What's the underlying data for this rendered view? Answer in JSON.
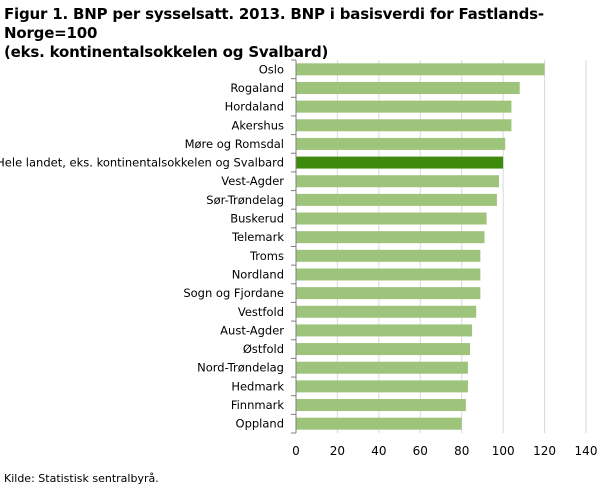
{
  "title_line1": "Figur 1. BNP per sysselsatt. 2013. BNP i basisverdi for Fastlands-Norge=100",
  "title_line2": "(eks. kontinentalsokkelen og Svalbard)",
  "source": "Kilde: Statistisk sentralbyrå.",
  "colors": {
    "bar": "#9dc47a",
    "highlight": "#3e8a0d",
    "grid": "#d9d9d9",
    "axis": "#7f7f7f"
  },
  "chart_data": {
    "type": "bar",
    "orientation": "horizontal",
    "categories": [
      "Oslo",
      "Rogaland",
      "Hordaland",
      "Akershus",
      "Møre og Romsdal",
      "Hele landet, eks. kontinentalsokkelen og Svalbard",
      "Vest-Agder",
      "Sør-Trøndelag",
      "Buskerud",
      "Telemark",
      "Troms",
      "Nordland",
      "Sogn og Fjordane",
      "Vestfold",
      "Aust-Agder",
      "Østfold",
      "Nord-Trøndelag",
      "Hedmark",
      "Finnmark",
      "Oppland"
    ],
    "values": [
      120,
      108,
      104,
      104,
      101,
      100,
      98,
      97,
      92,
      91,
      89,
      89,
      89,
      87,
      85,
      84,
      83,
      83,
      82,
      80
    ],
    "highlight_category": "Hele landet, eks. kontinentalsokkelen og Svalbard",
    "xlim": [
      0,
      140
    ],
    "xticks": [
      0,
      20,
      40,
      60,
      80,
      100,
      120,
      140
    ],
    "grid": "vertical",
    "legend": "none",
    "xlabel": "",
    "ylabel": ""
  }
}
